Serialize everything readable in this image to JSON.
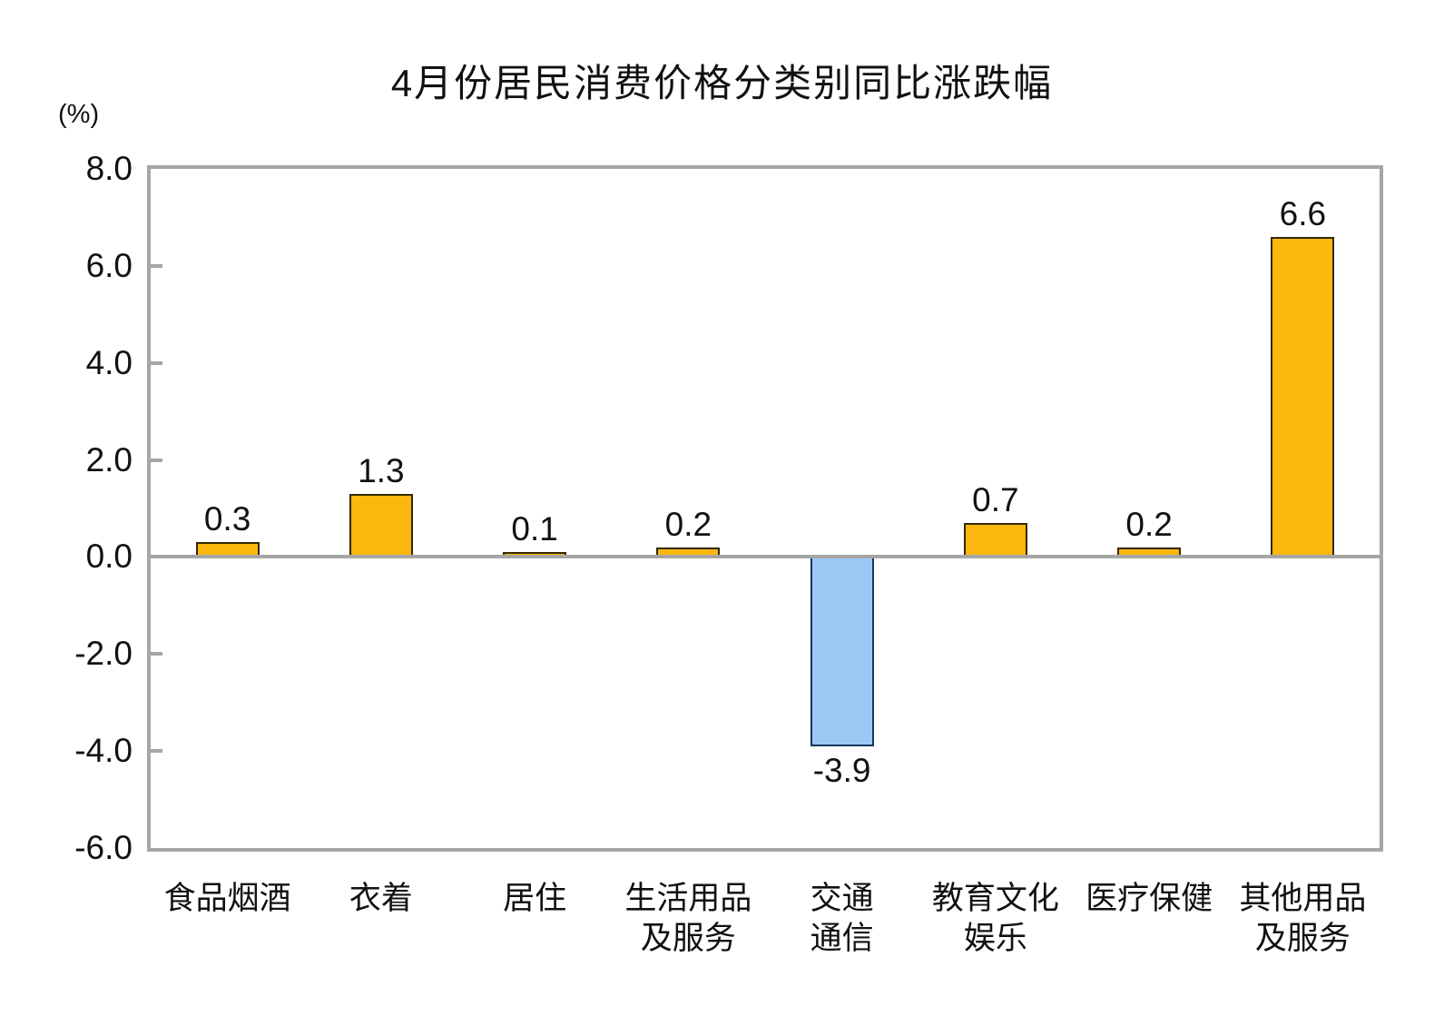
{
  "chart_data": {
    "type": "bar",
    "title": "4月份居民消费价格分类别同比涨跌幅",
    "ylabel_unit": "(%)",
    "categories": [
      "食品烟酒",
      "衣着",
      "居住",
      "生活用品及服务",
      "交通通信",
      "教育文化娱乐",
      "医疗保健",
      "其他用品及服务"
    ],
    "category_lines": [
      [
        "食品烟酒"
      ],
      [
        "衣着"
      ],
      [
        "居住"
      ],
      [
        "生活用品",
        "及服务"
      ],
      [
        "交通",
        "通信"
      ],
      [
        "教育文化",
        "娱乐"
      ],
      [
        "医疗保健"
      ],
      [
        "其他用品",
        "及服务"
      ]
    ],
    "values": [
      0.3,
      1.3,
      0.1,
      0.2,
      -3.9,
      0.7,
      0.2,
      6.6
    ],
    "data_labels": [
      "0.3",
      "1.3",
      "0.1",
      "0.2",
      "-3.9",
      "0.7",
      "0.2",
      "6.6"
    ],
    "y_ticks": [
      8,
      6,
      4,
      2,
      0,
      -2,
      -4,
      -6
    ],
    "y_tick_labels": [
      "8.0",
      "6.0",
      "4.0",
      "2.0",
      "0.0",
      "-2.0",
      "-4.0",
      "-6.0"
    ],
    "ylim": [
      -6,
      8
    ],
    "grid": false,
    "legend": "none",
    "colors": {
      "positive_fill": "#FCB80E",
      "positive_stroke": "#332900",
      "negative_fill": "#9CC8F5",
      "negative_stroke": "#16365C",
      "axis": "#A6A6A6",
      "label_text": "#111111"
    }
  }
}
